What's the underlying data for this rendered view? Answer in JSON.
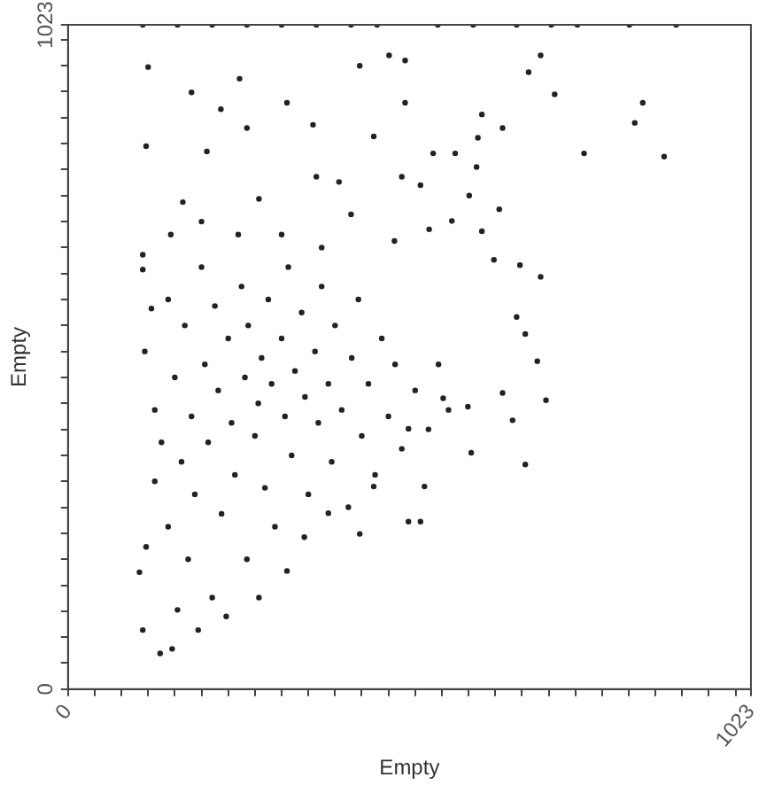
{
  "chart_data": {
    "type": "scatter",
    "xlabel": "Empty",
    "ylabel": "Empty",
    "xlim": [
      0,
      1023
    ],
    "ylim": [
      0,
      1023
    ],
    "xticks": [
      0,
      {
        "value": 40,
        "label": null
      },
      {
        "value": 80,
        "label": null
      },
      {
        "value": 120,
        "label": null
      },
      {
        "value": 160,
        "label": null
      },
      {
        "value": 200,
        "label": null
      },
      {
        "value": 240,
        "label": null
      },
      {
        "value": 280,
        "label": null
      },
      {
        "value": 320,
        "label": null
      },
      {
        "value": 360,
        "label": null
      },
      {
        "value": 400,
        "label": null
      },
      {
        "value": 440,
        "label": null
      },
      {
        "value": 480,
        "label": null
      },
      {
        "value": 520,
        "label": null
      },
      {
        "value": 560,
        "label": null
      },
      {
        "value": 600,
        "label": null
      },
      {
        "value": 640,
        "label": null
      },
      {
        "value": 680,
        "label": null
      },
      {
        "value": 720,
        "label": null
      },
      {
        "value": 760,
        "label": null
      },
      {
        "value": 800,
        "label": null
      },
      {
        "value": 840,
        "label": null
      },
      {
        "value": 880,
        "label": null
      },
      {
        "value": 920,
        "label": null
      },
      {
        "value": 960,
        "label": null
      },
      {
        "value": 1000,
        "label": null
      },
      1023
    ],
    "yticks": [
      0,
      {
        "value": 40,
        "label": null
      },
      {
        "value": 80,
        "label": null
      },
      {
        "value": 120,
        "label": null
      },
      {
        "value": 160,
        "label": null
      },
      {
        "value": 200,
        "label": null
      },
      {
        "value": 240,
        "label": null
      },
      {
        "value": 280,
        "label": null
      },
      {
        "value": 320,
        "label": null
      },
      {
        "value": 360,
        "label": null
      },
      {
        "value": 400,
        "label": null
      },
      {
        "value": 440,
        "label": null
      },
      {
        "value": 480,
        "label": null
      },
      {
        "value": 520,
        "label": null
      },
      {
        "value": 560,
        "label": null
      },
      {
        "value": 600,
        "label": null
      },
      {
        "value": 640,
        "label": null
      },
      {
        "value": 680,
        "label": null
      },
      {
        "value": 720,
        "label": null
      },
      {
        "value": 760,
        "label": null
      },
      {
        "value": 800,
        "label": null
      },
      {
        "value": 840,
        "label": null
      },
      {
        "value": 880,
        "label": null
      },
      {
        "value": 920,
        "label": null
      },
      {
        "value": 960,
        "label": null
      },
      {
        "value": 1000,
        "label": null
      },
      1023
    ],
    "grid": false,
    "legend": false,
    "marker": "circle",
    "series": [
      {
        "color": "#222222",
        "x": [
          112,
          164,
          216,
          268,
          320,
          372,
          424,
          463,
          554,
          607,
          672,
          724,
          763,
          841,
          911,
          120,
          185,
          257,
          229,
          328,
          437,
          481,
          505,
          505,
          690,
          708,
          729,
          861,
          849,
          893,
          773,
          651,
          620,
          117,
          208,
          268,
          367,
          458,
          547,
          580,
          612,
          614,
          500,
          528,
          172,
          286,
          372,
          406,
          601,
          646,
          575,
          620,
          154,
          424,
          541,
          677,
          708,
          638,
          112,
          112,
          125,
          489,
          672,
          703,
          685,
          716,
          651,
          666,
          685,
          604,
          528,
          510,
          534,
          437,
          328,
          286,
          237,
          195,
          138,
          156,
          112,
          107,
          117,
          164,
          216,
          268,
          354,
          390,
          458,
          510,
          599,
          562,
          115,
          130,
          140,
          150,
          160,
          170,
          175,
          185,
          190,
          200,
          205,
          210,
          220,
          225,
          230,
          240,
          245,
          250,
          260,
          265,
          270,
          280,
          285,
          290,
          295,
          300,
          305,
          310,
          320,
          325,
          330,
          335,
          340,
          350,
          355,
          360,
          370,
          375,
          380,
          390,
          395,
          400,
          410,
          420,
          425,
          435,
          440,
          450,
          460,
          470,
          480,
          490,
          500,
          520,
          540,
          555,
          570,
          255,
          320,
          380,
          200,
          150,
          180,
          130
        ],
        "values": [
          1023,
          1023,
          1023,
          1023,
          1023,
          1023,
          1023,
          1023,
          1023,
          1023,
          1023,
          1023,
          1023,
          1023,
          1023,
          958,
          919,
          940,
          893,
          903,
          960,
          976,
          968,
          903,
          950,
          976,
          916,
          903,
          872,
          820,
          825,
          864,
          885,
          836,
          828,
          864,
          869,
          851,
          825,
          825,
          804,
          849,
          789,
          776,
          750,
          755,
          789,
          781,
          760,
          739,
          721,
          705,
          700,
          731,
          708,
          653,
          635,
          661,
          669,
          646,
          586,
          690,
          573,
          505,
          547,
          445,
          456,
          414,
          346,
          364,
          258,
          258,
          312,
          239,
          182,
          141,
          112,
          91,
          55,
          62,
          91,
          180,
          219,
          122,
          141,
          200,
          234,
          271,
          312,
          401,
          435,
          448,
          520,
          430,
          380,
          600,
          480,
          350,
          560,
          420,
          300,
          650,
          500,
          380,
          590,
          460,
          270,
          540,
          410,
          330,
          620,
          480,
          560,
          390,
          440,
          510,
          310,
          600,
          470,
          250,
          540,
          420,
          650,
          360,
          490,
          580,
          450,
          300,
          520,
          410,
          620,
          470,
          350,
          560,
          430,
          280,
          510,
          600,
          390,
          470,
          330,
          540,
          420,
          500,
          370,
          460,
          400,
          500,
          430,
          700,
          700,
          680,
          720,
          250,
          200,
          320
        ]
      }
    ]
  }
}
